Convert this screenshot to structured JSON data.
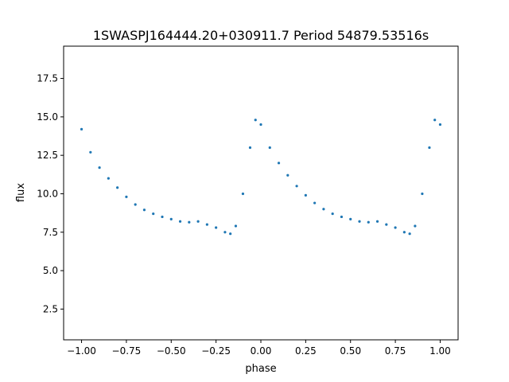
{
  "chart_data": {
    "type": "scatter",
    "title": "1SWASPJ164444.20+030911.7 Period 54879.53516s",
    "xlabel": "phase",
    "ylabel": "flux",
    "xlim": [
      -1.1,
      1.1
    ],
    "ylim": [
      0.5,
      19.6
    ],
    "x_ticks": [
      -1.0,
      -0.75,
      -0.5,
      -0.25,
      0.0,
      0.25,
      0.5,
      0.75,
      1.0
    ],
    "x_tick_labels": [
      "−1.00",
      "−0.75",
      "−0.50",
      "−0.25",
      "0.00",
      "0.25",
      "0.50",
      "0.75",
      "1.00"
    ],
    "y_ticks": [
      2.5,
      5.0,
      7.5,
      10.0,
      12.5,
      15.0,
      17.5
    ],
    "y_tick_labels": [
      "2.5",
      "5.0",
      "7.5",
      "10.0",
      "12.5",
      "15.0",
      "17.5"
    ],
    "grid": false,
    "marker_color": "#1f77b4",
    "series": [
      {
        "x": [
          -1.0,
          -0.95,
          -0.9,
          -0.85,
          -0.8,
          -0.75,
          -0.7,
          -0.65,
          -0.6,
          -0.55,
          -0.5,
          -0.45,
          -0.4,
          -0.35,
          -0.3,
          -0.25,
          -0.2,
          -0.17,
          -0.14,
          -0.1,
          -0.06,
          -0.03,
          0.0,
          0.05,
          0.1,
          0.15,
          0.2,
          0.25,
          0.3,
          0.35,
          0.4,
          0.45,
          0.5,
          0.55,
          0.6,
          0.65,
          0.7,
          0.75,
          0.8,
          0.83,
          0.86,
          0.9,
          0.94,
          0.97,
          1.0
        ],
        "y": [
          14.2,
          12.7,
          11.7,
          11.0,
          10.4,
          9.8,
          9.3,
          8.95,
          8.7,
          8.5,
          8.35,
          8.2,
          8.15,
          8.2,
          8.0,
          7.8,
          7.5,
          7.4,
          7.9,
          10.0,
          13.0,
          14.8,
          14.5,
          13.0,
          12.0,
          11.2,
          10.5,
          9.9,
          9.4,
          9.0,
          8.7,
          8.5,
          8.35,
          8.2,
          8.15,
          8.2,
          8.0,
          7.8,
          7.5,
          7.4,
          7.9,
          10.0,
          13.0,
          14.8,
          14.5
        ]
      }
    ]
  }
}
